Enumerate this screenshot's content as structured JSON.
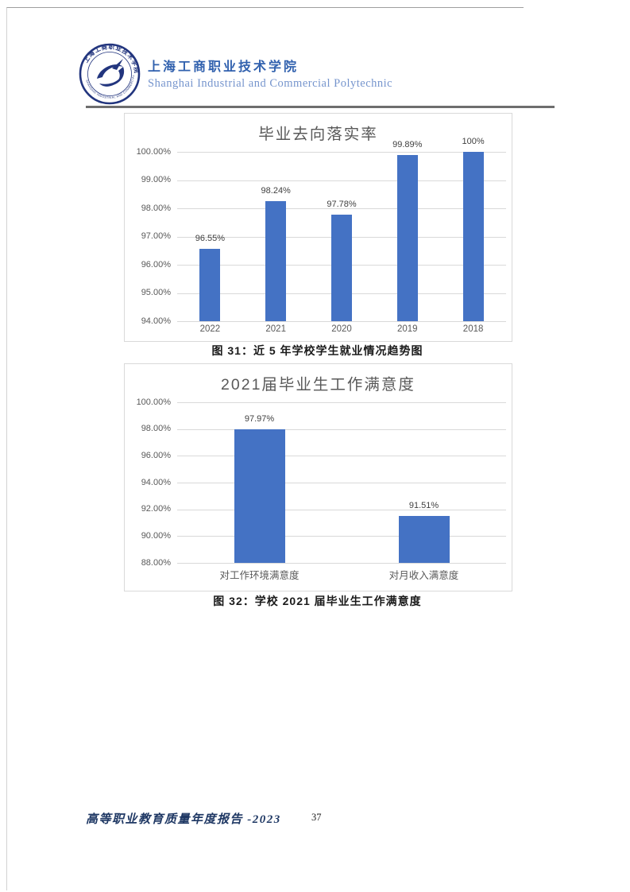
{
  "header": {
    "school_name_cn": "上海工商职业技术学院",
    "school_name_en": "Shanghai Industrial and Commercial Polytechnic",
    "logo_icon": "school-seal-logo",
    "accent_color_cn": "#3161ae",
    "accent_color_en": "#7695cd"
  },
  "chart_data": [
    {
      "type": "bar",
      "title": "毕业去向落实率",
      "categories": [
        "2022",
        "2021",
        "2020",
        "2019",
        "2018"
      ],
      "values": [
        96.55,
        98.24,
        97.78,
        99.89,
        100
      ],
      "data_labels": [
        "96.55%",
        "98.24%",
        "97.78%",
        "99.89%",
        "100%"
      ],
      "y_ticks": [
        "100.00%",
        "99.00%",
        "98.00%",
        "97.00%",
        "96.00%",
        "95.00%",
        "94.00%"
      ],
      "ylim": [
        94,
        100
      ],
      "grid": true,
      "legend": "none",
      "bar_color": "#4472c4",
      "gridline_color": "#d9d9d9",
      "caption": "图 31：近 5 年学校学生就业情况趋势图"
    },
    {
      "type": "bar",
      "title": "2021届毕业生工作满意度",
      "categories": [
        "对工作环境满意度",
        "对月收入满意度"
      ],
      "values": [
        97.97,
        91.51
      ],
      "data_labels": [
        "97.97%",
        "91.51%"
      ],
      "y_ticks": [
        "100.00%",
        "98.00%",
        "96.00%",
        "94.00%",
        "92.00%",
        "90.00%",
        "88.00%"
      ],
      "ylim": [
        88,
        100
      ],
      "grid": true,
      "legend": "none",
      "bar_color": "#4472c4",
      "gridline_color": "#d9d9d9",
      "caption": "图 32：学校 2021 届毕业生工作满意度"
    }
  ],
  "footer": {
    "report_title": "高等职业教育质量年度报告 -2023",
    "page_number": "37"
  }
}
